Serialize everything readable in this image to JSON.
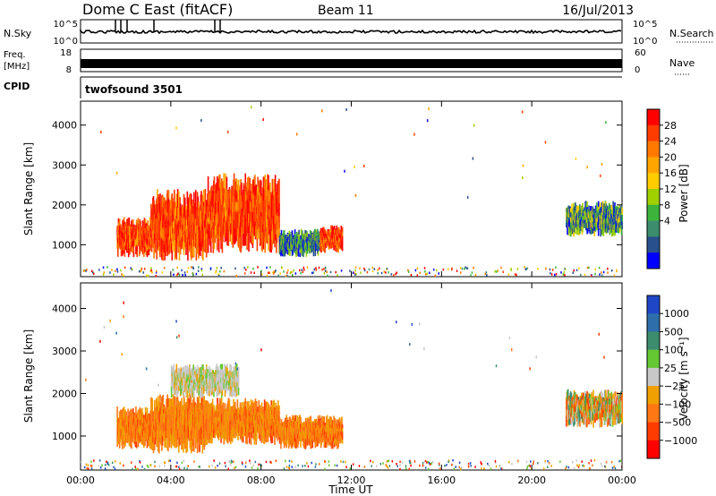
{
  "header": {
    "title": "Dome C East (fitACF)",
    "beam": "Beam 11",
    "date": "16/Jul/2013"
  },
  "summary_panels": {
    "nsky": {
      "label": "N.Sky",
      "right_label": "N.Search",
      "left_ticks": [
        "10^5",
        "10^0"
      ],
      "right_ticks": [
        "10^5",
        "10^0"
      ]
    },
    "freq": {
      "label_line1": "Freq.",
      "label_line2": "[MHz]",
      "right_label": "Nave",
      "left_ticks": [
        "18",
        "8"
      ],
      "right_ticks": [
        "60",
        "0"
      ]
    },
    "cpid": {
      "label": "CPID",
      "value": "twofsound 3501"
    }
  },
  "chart_data": [
    {
      "type": "heatmap",
      "title": "",
      "ylabel": "Slant Range [km]",
      "xlabel": "",
      "y_ticks": [
        1000,
        2000,
        3000,
        4000
      ],
      "ylim": [
        200,
        4600
      ],
      "xlim_hours": [
        0,
        24
      ],
      "colorbar": {
        "label": "Power [dB]",
        "ticks": [
          "28",
          "24",
          "20",
          "16",
          "12",
          "8",
          "4"
        ],
        "colors": [
          "#ff0000",
          "#ff3c00",
          "#ff7800",
          "#ffa500",
          "#ffcc00",
          "#a0d000",
          "#3cb43c",
          "#3c8c6e",
          "#28508c",
          "#0000ff"
        ]
      },
      "regions": [
        {
          "t0": 1.6,
          "t1": 3.1,
          "r0": 700,
          "r1": 1700,
          "level": "strong"
        },
        {
          "t0": 3.1,
          "t1": 5.6,
          "r0": 600,
          "r1": 2400,
          "level": "strong"
        },
        {
          "t0": 5.6,
          "t1": 8.8,
          "r0": 800,
          "r1": 2800,
          "level": "strong"
        },
        {
          "t0": 8.8,
          "t1": 10.6,
          "r0": 700,
          "r1": 1400,
          "level": "weak"
        },
        {
          "t0": 10.6,
          "t1": 11.6,
          "r0": 800,
          "r1": 1500,
          "level": "strong"
        },
        {
          "t0": 21.5,
          "t1": 24.0,
          "r0": 1200,
          "r1": 2100,
          "level": "medium"
        }
      ]
    },
    {
      "type": "heatmap",
      "title": "",
      "ylabel": "Slant Range [km]",
      "xlabel": "Time UT",
      "x_ticks": [
        "00:00",
        "04:00",
        "08:00",
        "12:00",
        "16:00",
        "20:00",
        "00:00"
      ],
      "y_ticks": [
        1000,
        2000,
        3000,
        4000
      ],
      "ylim": [
        200,
        4600
      ],
      "xlim_hours": [
        0,
        24
      ],
      "colorbar": {
        "label": "Velocity [m s⁻¹]",
        "ticks": [
          "1000",
          "500",
          "100",
          "25",
          "−25",
          "−100",
          "−500",
          "−1000"
        ],
        "colors": [
          "#2046c8",
          "#2e6eaa",
          "#3c8c6e",
          "#64c832",
          "#c8c8c8",
          "#f0a000",
          "#ff7814",
          "#ff3c00",
          "#ff0000"
        ]
      },
      "regions": [
        {
          "t0": 1.6,
          "t1": 3.1,
          "r0": 700,
          "r1": 1700,
          "level": "negative"
        },
        {
          "t0": 3.1,
          "t1": 5.6,
          "r0": 600,
          "r1": 2000,
          "level": "negative"
        },
        {
          "t0": 4.0,
          "t1": 7.0,
          "r0": 1900,
          "r1": 2700,
          "level": "neutral"
        },
        {
          "t0": 5.6,
          "t1": 8.8,
          "r0": 800,
          "r1": 1900,
          "level": "negative"
        },
        {
          "t0": 8.8,
          "t1": 11.6,
          "r0": 700,
          "r1": 1500,
          "level": "negative"
        },
        {
          "t0": 21.5,
          "t1": 24.0,
          "r0": 1200,
          "r1": 2100,
          "level": "mixed"
        }
      ]
    }
  ]
}
